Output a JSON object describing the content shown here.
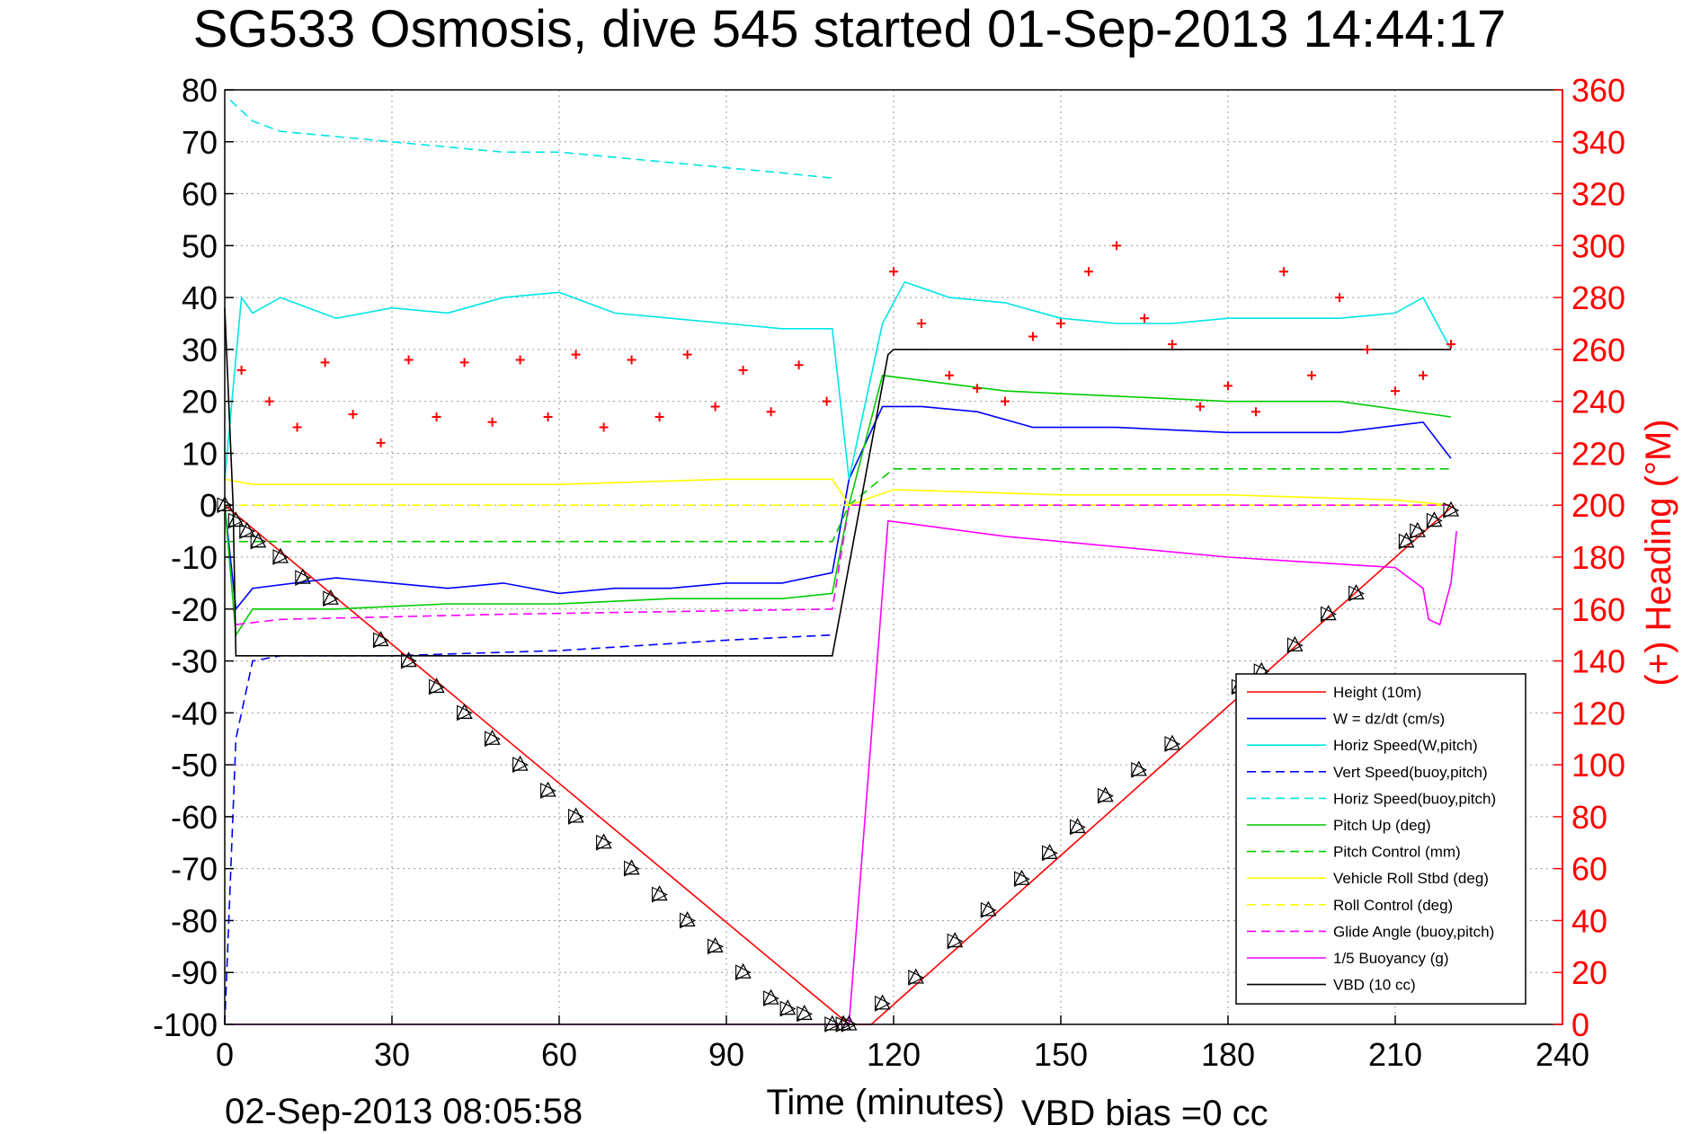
{
  "chart_data": {
    "type": "line",
    "title": "SG533 Osmosis, dive 545 started 01-Sep-2013 14:44:17",
    "xlabel": "Time (minutes)",
    "ylabel": "",
    "ylabel_right": "(+) Heading (°M)",
    "footer_left": "02-Sep-2013 08:05:58",
    "footer_right": "VBD bias =0 cc",
    "xlim": [
      0,
      240
    ],
    "ylim": [
      -100,
      80
    ],
    "ylim_right": [
      0,
      360
    ],
    "x_ticks": [
      "0",
      "30",
      "60",
      "90",
      "120",
      "150",
      "180",
      "210",
      "240"
    ],
    "y_ticks": [
      "80",
      "70",
      "60",
      "50",
      "40",
      "30",
      "20",
      "10",
      "0",
      "-10",
      "-20",
      "-30",
      "-40",
      "-50",
      "-60",
      "-70",
      "-80",
      "-90",
      "-100"
    ],
    "y_ticks_right": [
      "360",
      "340",
      "320",
      "300",
      "280",
      "260",
      "240",
      "220",
      "200",
      "180",
      "160",
      "140",
      "120",
      "100",
      "80",
      "60",
      "40",
      "20",
      "0"
    ],
    "grid": true,
    "legend_position": "bottom-right",
    "series": [
      {
        "name": "Height (10m)",
        "color": "#ff0000",
        "style": "solid",
        "x": [
          0,
          112,
          116,
          220.5
        ],
        "y": [
          0,
          -100,
          -100,
          0
        ]
      },
      {
        "name": "W = dz/dt (cm/s)",
        "color": "#0000ff",
        "style": "solid",
        "x": [
          0,
          2,
          5,
          20,
          30,
          40,
          50,
          60,
          70,
          80,
          90,
          100,
          109,
          112,
          118,
          125,
          135,
          145,
          160,
          180,
          200,
          215,
          220
        ],
        "y": [
          0,
          -20,
          -16,
          -14,
          -15,
          -16,
          -15,
          -17,
          -16,
          -16,
          -15,
          -15,
          -13,
          5,
          19,
          19,
          18,
          15,
          15,
          14,
          14,
          16,
          9
        ]
      },
      {
        "name": "Horiz Speed(W,pitch)",
        "color": "#00e5e5",
        "style": "solid",
        "x": [
          0,
          3,
          5,
          10,
          20,
          30,
          40,
          50,
          60,
          70,
          80,
          90,
          100,
          109,
          112,
          118,
          122,
          130,
          140,
          150,
          160,
          170,
          180,
          190,
          200,
          210,
          215,
          220
        ],
        "y": [
          5,
          40,
          37,
          40,
          36,
          38,
          37,
          40,
          41,
          37,
          36,
          35,
          34,
          34,
          5,
          35,
          43,
          40,
          39,
          36,
          35,
          35,
          36,
          36,
          36,
          37,
          40,
          30
        ]
      },
      {
        "name": "Vert Speed(buoy,pitch)",
        "color": "#0000ff",
        "style": "dashed",
        "x": [
          0,
          2,
          5,
          10,
          30,
          60,
          90,
          109
        ],
        "y": [
          -100,
          -45,
          -30,
          -29,
          -29,
          -28,
          -26,
          -25
        ]
      },
      {
        "name": "Horiz Speed(buoy,pitch)",
        "color": "#00e5e5",
        "style": "dashed",
        "x": [
          1,
          5,
          10,
          20,
          30,
          40,
          50,
          60,
          70,
          80,
          90,
          100,
          109
        ],
        "y": [
          78,
          74,
          72,
          71,
          70,
          69,
          68,
          68,
          67,
          66,
          65,
          64,
          63
        ]
      },
      {
        "name": "Pitch Up (deg)",
        "color": "#00cc00",
        "style": "solid",
        "x": [
          0,
          2,
          5,
          20,
          40,
          60,
          80,
          100,
          109,
          112,
          118,
          140,
          160,
          180,
          200,
          220
        ],
        "y": [
          0,
          -25,
          -20,
          -20,
          -19,
          -19,
          -18,
          -18,
          -17,
          0,
          25,
          22,
          21,
          20,
          20,
          17
        ]
      },
      {
        "name": "Pitch Control (mm)",
        "color": "#00cc00",
        "style": "dashed",
        "x": [
          0,
          5,
          109,
          112,
          120,
          220
        ],
        "y": [
          -7,
          -7,
          -7,
          0,
          7,
          7
        ]
      },
      {
        "name": "Vehicle Roll Stbd (deg)",
        "color": "#ffff00",
        "style": "solid",
        "x": [
          0,
          5,
          30,
          60,
          90,
          109,
          112,
          120,
          150,
          180,
          210,
          220
        ],
        "y": [
          5,
          4,
          4,
          4,
          5,
          5,
          0,
          3,
          2,
          2,
          1,
          0
        ]
      },
      {
        "name": "Roll Control (deg)",
        "color": "#ffff00",
        "style": "dashed",
        "x": [
          0,
          109,
          112,
          220
        ],
        "y": [
          0,
          0,
          0,
          0
        ]
      },
      {
        "name": "Glide Angle (buoy,pitch)",
        "color": "#ff00ff",
        "style": "dashed",
        "x": [
          2,
          10,
          50,
          109,
          112,
          220
        ],
        "y": [
          -23,
          -22,
          -21,
          -20,
          0,
          0
        ]
      },
      {
        "name": "1/5 Buoyancy (g)",
        "color": "#ff00ff",
        "style": "solid",
        "x": [
          1,
          1.5,
          109,
          112,
          119,
          140,
          180,
          210,
          215,
          216,
          218,
          220,
          221
        ],
        "y": [
          -100,
          -100,
          -100,
          -100,
          -3,
          -6,
          -10,
          -12,
          -16,
          -22,
          -23,
          -15,
          -5
        ]
      },
      {
        "name": "VBD (10 cc)",
        "color": "#000000",
        "style": "solid",
        "x": [
          0,
          1.5,
          2,
          109,
          119,
          120,
          220
        ],
        "y": [
          38,
          0,
          -29,
          -29,
          29,
          30,
          30
        ]
      },
      {
        "name": "(+) Heading (°M)",
        "color": "#ff0000",
        "style": "markers",
        "axis": "right",
        "x": [
          3,
          8,
          13,
          18,
          23,
          28,
          33,
          38,
          43,
          48,
          53,
          58,
          63,
          68,
          73,
          78,
          83,
          88,
          93,
          98,
          103,
          108,
          120,
          125,
          130,
          135,
          140,
          145,
          150,
          155,
          160,
          165,
          170,
          175,
          180,
          185,
          190,
          195,
          200,
          205,
          210,
          215,
          220
        ],
        "y": [
          252,
          240,
          230,
          255,
          235,
          224,
          256,
          234,
          255,
          232,
          256,
          234,
          258,
          230,
          256,
          234,
          258,
          238,
          252,
          236,
          254,
          240,
          290,
          270,
          250,
          245,
          240,
          265,
          270,
          290,
          300,
          272,
          262,
          238,
          246,
          236,
          290,
          250,
          280,
          260,
          244,
          250,
          262
        ]
      }
    ],
    "dive_markers": {
      "description": "",
      "symbol": "triangles",
      "x": [
        0,
        2,
        4,
        6,
        10,
        14,
        19,
        28,
        33,
        38,
        43,
        48,
        53,
        58,
        63,
        68,
        73,
        78,
        83,
        88,
        93,
        98,
        101,
        104,
        109,
        111,
        112,
        118,
        124,
        131,
        137,
        143,
        148,
        153,
        158,
        164,
        170,
        182,
        186,
        192,
        198,
        203,
        212,
        214,
        217,
        220
      ],
      "y": [
        0,
        -3,
        -5,
        -7,
        -10,
        -14,
        -18,
        -26,
        -30,
        -35,
        -40,
        -45,
        -50,
        -55,
        -60,
        -65,
        -70,
        -75,
        -80,
        -85,
        -90,
        -95,
        -97,
        -98,
        -100,
        -100,
        -100,
        -96,
        -91,
        -84,
        -78,
        -72,
        -67,
        -62,
        -56,
        -51,
        -46,
        -35,
        -32,
        -27,
        -21,
        -17,
        -7,
        -5,
        -3,
        -1
      ]
    }
  }
}
